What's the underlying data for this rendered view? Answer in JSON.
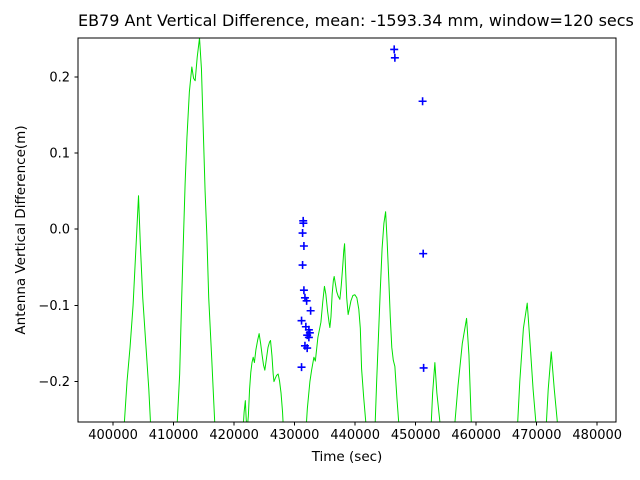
{
  "window": {
    "kind": "matplotlib-figure",
    "background_color": "#ffffff"
  },
  "chart_data": {
    "type": "line",
    "title": "EB79 Ant Vertical Difference, mean: -1593.34 mm, window=120 secs",
    "xlabel": "Time (sec)",
    "ylabel": "Antenna Vertical Difference(m)",
    "xlim": [
      394200,
      483100
    ],
    "ylim": [
      -0.253,
      0.251
    ],
    "grid": false,
    "legend": "none",
    "x_ticks": [
      400000,
      410000,
      420000,
      430000,
      440000,
      450000,
      460000,
      470000,
      480000
    ],
    "x_tick_labels": [
      "400000",
      "410000",
      "420000",
      "430000",
      "440000",
      "450000",
      "460000",
      "470000",
      "480000"
    ],
    "y_ticks": [
      0.2,
      0.1,
      0.0,
      -0.1,
      -0.2
    ],
    "y_tick_labels": [
      "0.2",
      "0.1",
      "0.0",
      "−0.1",
      "−0.2"
    ],
    "axis_color": "#000000",
    "series": [
      {
        "name": "antenna-vertical-difference-line",
        "type": "line",
        "color": "#00e000",
        "line_width": 1,
        "points": [
          [
            401770,
            -0.265
          ],
          [
            402300,
            -0.2
          ],
          [
            402800,
            -0.155
          ],
          [
            403300,
            -0.1
          ],
          [
            403800,
            -0.02
          ],
          [
            404200,
            0.044
          ],
          [
            404500,
            -0.02
          ],
          [
            404900,
            -0.09
          ],
          [
            405400,
            -0.15
          ],
          [
            405900,
            -0.21
          ],
          [
            406250,
            -0.265
          ],
          [
            410530,
            -0.265
          ],
          [
            411000,
            -0.19
          ],
          [
            411300,
            -0.1
          ],
          [
            411640,
            -0.008
          ],
          [
            411900,
            0.06
          ],
          [
            412200,
            0.12
          ],
          [
            412600,
            0.18
          ],
          [
            413010,
            0.213
          ],
          [
            413300,
            0.198
          ],
          [
            413560,
            0.195
          ],
          [
            413900,
            0.226
          ],
          [
            414280,
            0.251
          ],
          [
            414600,
            0.21
          ],
          [
            414900,
            0.13
          ],
          [
            415200,
            0.05
          ],
          [
            415490,
            -0.008
          ],
          [
            415800,
            -0.09
          ],
          [
            416300,
            -0.17
          ],
          [
            416860,
            -0.265
          ],
          [
            421450,
            -0.265
          ],
          [
            421650,
            -0.24
          ],
          [
            421850,
            -0.225
          ],
          [
            422000,
            -0.25
          ],
          [
            422150,
            -0.263
          ],
          [
            422350,
            -0.245
          ],
          [
            422550,
            -0.21
          ],
          [
            422750,
            -0.188
          ],
          [
            422950,
            -0.175
          ],
          [
            423150,
            -0.168
          ],
          [
            423350,
            -0.175
          ],
          [
            423600,
            -0.158
          ],
          [
            423900,
            -0.145
          ],
          [
            424130,
            -0.137
          ],
          [
            424380,
            -0.15
          ],
          [
            424620,
            -0.165
          ],
          [
            424850,
            -0.178
          ],
          [
            425070,
            -0.185
          ],
          [
            425300,
            -0.172
          ],
          [
            425600,
            -0.155
          ],
          [
            425850,
            -0.148
          ],
          [
            426010,
            -0.146
          ],
          [
            426250,
            -0.166
          ],
          [
            426450,
            -0.19
          ],
          [
            426580,
            -0.2
          ],
          [
            426780,
            -0.196
          ],
          [
            427000,
            -0.192
          ],
          [
            427270,
            -0.19
          ],
          [
            427500,
            -0.199
          ],
          [
            427750,
            -0.215
          ],
          [
            428000,
            -0.24
          ],
          [
            428160,
            -0.265
          ],
          [
            431860,
            -0.265
          ],
          [
            432100,
            -0.235
          ],
          [
            432520,
            -0.2
          ],
          [
            432800,
            -0.185
          ],
          [
            433180,
            -0.168
          ],
          [
            433420,
            -0.173
          ],
          [
            433840,
            -0.142
          ],
          [
            434340,
            -0.122
          ],
          [
            434650,
            -0.095
          ],
          [
            434920,
            -0.075
          ],
          [
            435150,
            -0.085
          ],
          [
            435450,
            -0.108
          ],
          [
            435680,
            -0.122
          ],
          [
            435820,
            -0.129
          ],
          [
            436000,
            -0.115
          ],
          [
            436200,
            -0.085
          ],
          [
            436400,
            -0.067
          ],
          [
            436530,
            -0.062
          ],
          [
            436700,
            -0.07
          ],
          [
            436950,
            -0.082
          ],
          [
            437200,
            -0.088
          ],
          [
            437470,
            -0.092
          ],
          [
            437700,
            -0.074
          ],
          [
            437950,
            -0.048
          ],
          [
            438120,
            -0.028
          ],
          [
            438250,
            -0.019
          ],
          [
            438400,
            -0.05
          ],
          [
            438600,
            -0.09
          ],
          [
            438840,
            -0.112
          ],
          [
            439050,
            -0.104
          ],
          [
            439300,
            -0.094
          ],
          [
            439620,
            -0.087
          ],
          [
            439950,
            -0.086
          ],
          [
            440280,
            -0.09
          ],
          [
            440600,
            -0.105
          ],
          [
            440850,
            -0.13
          ],
          [
            441060,
            -0.183
          ],
          [
            441400,
            -0.22
          ],
          [
            441880,
            -0.265
          ],
          [
            443260,
            -0.265
          ],
          [
            443550,
            -0.2
          ],
          [
            443850,
            -0.14
          ],
          [
            444150,
            -0.08
          ],
          [
            444450,
            -0.025
          ],
          [
            444750,
            0.008
          ],
          [
            445030,
            0.023
          ],
          [
            445280,
            -0.015
          ],
          [
            445550,
            -0.065
          ],
          [
            445800,
            -0.115
          ],
          [
            446050,
            -0.155
          ],
          [
            446300,
            -0.172
          ],
          [
            446560,
            -0.18
          ],
          [
            446900,
            -0.222
          ],
          [
            447300,
            -0.265
          ],
          [
            452510,
            -0.265
          ],
          [
            452800,
            -0.215
          ],
          [
            453170,
            -0.175
          ],
          [
            453500,
            -0.215
          ],
          [
            454160,
            -0.265
          ],
          [
            456360,
            -0.265
          ],
          [
            457000,
            -0.205
          ],
          [
            457700,
            -0.15
          ],
          [
            458410,
            -0.117
          ],
          [
            458800,
            -0.165
          ],
          [
            459240,
            -0.265
          ],
          [
            466780,
            -0.265
          ],
          [
            467200,
            -0.2
          ],
          [
            467800,
            -0.13
          ],
          [
            468430,
            -0.097
          ],
          [
            468900,
            -0.15
          ],
          [
            469400,
            -0.21
          ],
          [
            469980,
            -0.265
          ],
          [
            471520,
            -0.265
          ],
          [
            471900,
            -0.21
          ],
          [
            472400,
            -0.161
          ],
          [
            472900,
            -0.21
          ],
          [
            473550,
            -0.265
          ]
        ]
      },
      {
        "name": "windowed-mean-markers",
        "type": "scatter",
        "marker": "+",
        "marker_size": 4,
        "marker_stroke": 1.6,
        "color": "#0000ff",
        "points": [
          [
            431410,
            0.011
          ],
          [
            431440,
            0.008
          ],
          [
            431310,
            -0.005
          ],
          [
            431530,
            -0.022
          ],
          [
            431310,
            -0.047
          ],
          [
            431530,
            -0.08
          ],
          [
            431700,
            -0.09
          ],
          [
            431980,
            -0.094
          ],
          [
            432640,
            -0.107
          ],
          [
            431140,
            -0.12
          ],
          [
            431850,
            -0.128
          ],
          [
            432350,
            -0.132
          ],
          [
            432510,
            -0.136
          ],
          [
            432070,
            -0.139
          ],
          [
            432350,
            -0.142
          ],
          [
            431700,
            -0.153
          ],
          [
            432070,
            -0.156
          ],
          [
            431140,
            -0.181
          ],
          [
            446450,
            0.236
          ],
          [
            446560,
            0.225
          ],
          [
            451140,
            0.168
          ],
          [
            451240,
            -0.032
          ],
          [
            451310,
            -0.182
          ]
        ]
      }
    ]
  }
}
